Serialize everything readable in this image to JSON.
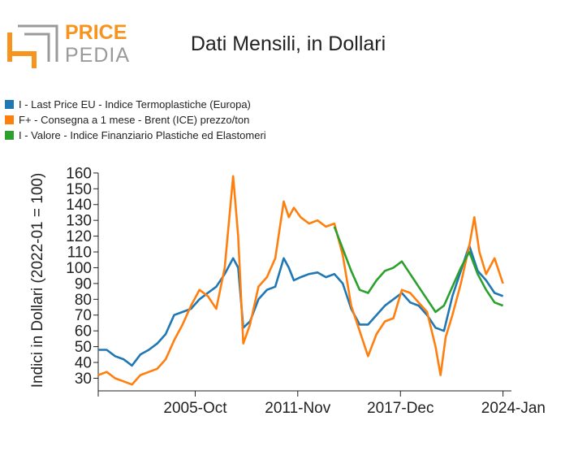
{
  "brand": {
    "line1": "PRICE",
    "line2": "PEDIA",
    "orange": "#f7941d",
    "gray": "#9a9a9a"
  },
  "title": "Dati Mensili, in Dollari",
  "legend": [
    {
      "label": "I - Last Price EU - Indice Termoplastiche (Europa)",
      "color": "#1f77b4"
    },
    {
      "label": "F+ - Consegna a 1 mese - Brent (ICE) prezzo/ton",
      "color": "#ff7f0e"
    },
    {
      "label": "I - Valore - Indice Finanziario Plastiche ed Elastomeri",
      "color": "#2ca02c"
    }
  ],
  "chart_data": {
    "type": "line",
    "title": "Dati Mensili, in Dollari",
    "ylabel": "Indici in Dollari (2022-01 = 100)",
    "xlabel": "",
    "ylim": [
      22,
      162
    ],
    "yticks": [
      30,
      40,
      50,
      60,
      70,
      80,
      90,
      100,
      110,
      120,
      130,
      140,
      150,
      160
    ],
    "xlim": [
      2000.0,
      2024.5
    ],
    "xticks": [
      {
        "label": "2005-Oct",
        "x": 2005.75
      },
      {
        "label": "2011-Nov",
        "x": 2011.83
      },
      {
        "label": "2017-Dec",
        "x": 2017.92
      },
      {
        "label": "2024-Jan",
        "x": 2024.0
      }
    ],
    "grid": false,
    "legend_position": "top-left",
    "series": [
      {
        "name": "I - Last Price EU - Indice Termoplastiche (Europa)",
        "color": "#1f77b4",
        "x": [
          2000.0,
          2000.5,
          2001.0,
          2001.5,
          2002.0,
          2002.5,
          2003.0,
          2003.5,
          2004.0,
          2004.5,
          2005.0,
          2005.5,
          2006.0,
          2006.5,
          2007.0,
          2007.5,
          2008.0,
          2008.3,
          2008.6,
          2009.0,
          2009.5,
          2010.0,
          2010.5,
          2011.0,
          2011.3,
          2011.6,
          2012.0,
          2012.5,
          2013.0,
          2013.5,
          2014.0,
          2014.5,
          2015.0,
          2015.5,
          2016.0,
          2016.5,
          2017.0,
          2017.5,
          2018.0,
          2018.5,
          2019.0,
          2019.5,
          2020.0,
          2020.5,
          2021.0,
          2021.5,
          2022.0,
          2022.5,
          2023.0,
          2023.5,
          2024.0
        ],
        "values": [
          48,
          48,
          44,
          42,
          38,
          45,
          48,
          52,
          58,
          70,
          72,
          74,
          80,
          84,
          88,
          96,
          106,
          100,
          62,
          66,
          80,
          86,
          88,
          106,
          100,
          92,
          94,
          96,
          97,
          94,
          96,
          90,
          74,
          64,
          64,
          70,
          76,
          80,
          84,
          78,
          76,
          70,
          62,
          60,
          82,
          98,
          114,
          98,
          92,
          84,
          82
        ]
      },
      {
        "name": "F+ - Consegna a 1 mese - Brent (ICE) prezzo/ton",
        "color": "#ff7f0e",
        "x": [
          2000.0,
          2000.5,
          2001.0,
          2001.5,
          2002.0,
          2002.5,
          2003.0,
          2003.5,
          2004.0,
          2004.5,
          2005.0,
          2005.5,
          2006.0,
          2006.5,
          2007.0,
          2007.5,
          2008.0,
          2008.3,
          2008.6,
          2009.0,
          2009.5,
          2010.0,
          2010.5,
          2011.0,
          2011.3,
          2011.6,
          2012.0,
          2012.5,
          2013.0,
          2013.5,
          2014.0,
          2014.5,
          2015.0,
          2015.5,
          2016.0,
          2016.5,
          2017.0,
          2017.5,
          2018.0,
          2018.5,
          2019.0,
          2019.5,
          2020.0,
          2020.3,
          2020.6,
          2021.0,
          2021.5,
          2022.0,
          2022.3,
          2022.6,
          2023.0,
          2023.5,
          2024.0
        ],
        "values": [
          32,
          34,
          30,
          28,
          26,
          32,
          34,
          36,
          42,
          54,
          64,
          76,
          86,
          82,
          74,
          100,
          158,
          120,
          52,
          64,
          88,
          94,
          106,
          142,
          132,
          138,
          132,
          128,
          130,
          126,
          128,
          108,
          76,
          60,
          44,
          58,
          66,
          68,
          86,
          84,
          78,
          72,
          50,
          32,
          56,
          70,
          90,
          114,
          132,
          110,
          96,
          106,
          90
        ]
      },
      {
        "name": "I - Valore - Indice Finanziario Plastiche ed Elastomeri",
        "color": "#2ca02c",
        "x": [
          2014.0,
          2014.5,
          2015.0,
          2015.5,
          2016.0,
          2016.5,
          2017.0,
          2017.5,
          2018.0,
          2018.5,
          2019.0,
          2019.5,
          2020.0,
          2020.5,
          2021.0,
          2021.5,
          2022.0,
          2022.5,
          2023.0,
          2023.5,
          2024.0
        ],
        "values": [
          126,
          112,
          98,
          86,
          84,
          92,
          98,
          100,
          104,
          96,
          88,
          80,
          72,
          76,
          88,
          100,
          110,
          96,
          86,
          78,
          76
        ]
      }
    ]
  }
}
